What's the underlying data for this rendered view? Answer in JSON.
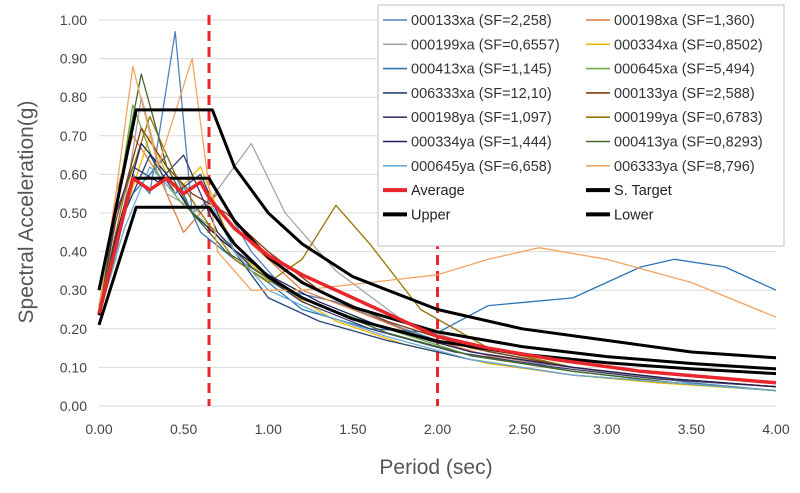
{
  "chart_data": {
    "type": "line",
    "title": "",
    "xlabel": "Period (sec)",
    "ylabel": "Spectral Acceleration(g)",
    "xlim": [
      0,
      4
    ],
    "ylim": [
      0,
      1
    ],
    "x_ticks": [
      "0.00",
      "0.50",
      "1.00",
      "1.50",
      "2.00",
      "2.50",
      "3.00",
      "3.50",
      "4.00"
    ],
    "y_ticks": [
      "0.00",
      "0.10",
      "0.20",
      "0.30",
      "0.40",
      "0.50",
      "0.60",
      "0.70",
      "0.80",
      "0.90",
      "1.00"
    ],
    "grid": "horizontal",
    "legend_position": "top-right",
    "reference_lines": [
      {
        "x": 0.65,
        "style": "dashed",
        "color": "#e8262b"
      },
      {
        "x": 2.0,
        "style": "dashed",
        "color": "#e8262b"
      }
    ],
    "record_series": [
      {
        "name": "000133xa (SF=2,258)",
        "color": "#4f81bd",
        "points": [
          [
            0,
            0.26
          ],
          [
            0.1,
            0.42
          ],
          [
            0.2,
            0.6
          ],
          [
            0.3,
            0.55
          ],
          [
            0.45,
            0.97
          ],
          [
            0.55,
            0.5
          ],
          [
            0.7,
            0.55
          ],
          [
            0.9,
            0.4
          ],
          [
            1.1,
            0.3
          ],
          [
            1.4,
            0.27
          ],
          [
            1.8,
            0.2
          ],
          [
            2.2,
            0.14
          ],
          [
            2.6,
            0.11
          ],
          [
            3,
            0.09
          ],
          [
            3.5,
            0.06
          ],
          [
            4,
            0.04
          ]
        ]
      },
      {
        "name": "000198xa (SF=1,360)",
        "color": "#e07b39",
        "points": [
          [
            0,
            0.25
          ],
          [
            0.1,
            0.55
          ],
          [
            0.2,
            0.7
          ],
          [
            0.35,
            0.6
          ],
          [
            0.5,
            0.45
          ],
          [
            0.7,
            0.55
          ],
          [
            0.9,
            0.42
          ],
          [
            1.2,
            0.3
          ],
          [
            1.5,
            0.25
          ],
          [
            1.9,
            0.18
          ],
          [
            2.3,
            0.13
          ],
          [
            2.8,
            0.1
          ],
          [
            3.3,
            0.07
          ],
          [
            4,
            0.05
          ]
        ]
      },
      {
        "name": "000199xa (SF=0,6557)",
        "color": "#a5a5a5",
        "points": [
          [
            0,
            0.24
          ],
          [
            0.1,
            0.38
          ],
          [
            0.25,
            0.8
          ],
          [
            0.4,
            0.55
          ],
          [
            0.6,
            0.5
          ],
          [
            0.9,
            0.68
          ],
          [
            1.1,
            0.5
          ],
          [
            1.4,
            0.35
          ],
          [
            1.8,
            0.22
          ],
          [
            2.3,
            0.14
          ],
          [
            2.8,
            0.1
          ],
          [
            3.3,
            0.07
          ],
          [
            4,
            0.05
          ]
        ]
      },
      {
        "name": "000334xa (SF=0,8502)",
        "color": "#f2b600",
        "points": [
          [
            0,
            0.24
          ],
          [
            0.15,
            0.5
          ],
          [
            0.3,
            0.7
          ],
          [
            0.45,
            0.55
          ],
          [
            0.6,
            0.62
          ],
          [
            0.8,
            0.4
          ],
          [
            1.1,
            0.3
          ],
          [
            1.4,
            0.22
          ],
          [
            1.8,
            0.16
          ],
          [
            2.3,
            0.11
          ],
          [
            2.8,
            0.08
          ],
          [
            3.3,
            0.06
          ],
          [
            4,
            0.04
          ]
        ]
      },
      {
        "name": "000413xa (SF=1,145)",
        "color": "#2e75b6",
        "points": [
          [
            0,
            0.25
          ],
          [
            0.1,
            0.45
          ],
          [
            0.2,
            0.55
          ],
          [
            0.4,
            0.65
          ],
          [
            0.6,
            0.45
          ],
          [
            0.8,
            0.38
          ],
          [
            1,
            0.32
          ],
          [
            1.2,
            0.25
          ],
          [
            1.6,
            0.2
          ],
          [
            2,
            0.19
          ],
          [
            2.3,
            0.26
          ],
          [
            2.8,
            0.28
          ],
          [
            3.2,
            0.36
          ],
          [
            3.4,
            0.38
          ],
          [
            3.7,
            0.36
          ],
          [
            4,
            0.3
          ]
        ]
      },
      {
        "name": "000645xa (SF=5,494)",
        "color": "#70ad47",
        "points": [
          [
            0,
            0.26
          ],
          [
            0.1,
            0.5
          ],
          [
            0.2,
            0.78
          ],
          [
            0.35,
            0.6
          ],
          [
            0.5,
            0.52
          ],
          [
            0.7,
            0.45
          ],
          [
            0.9,
            0.35
          ],
          [
            1.1,
            0.3
          ],
          [
            1.3,
            0.26
          ],
          [
            1.7,
            0.2
          ],
          [
            2.2,
            0.13
          ],
          [
            2.8,
            0.09
          ],
          [
            3.4,
            0.06
          ],
          [
            4,
            0.04
          ]
        ]
      },
      {
        "name": "006333xa (SF=12,10)",
        "color": "#264478",
        "points": [
          [
            0,
            0.24
          ],
          [
            0.15,
            0.5
          ],
          [
            0.3,
            0.65
          ],
          [
            0.45,
            0.55
          ],
          [
            0.6,
            0.6
          ],
          [
            0.8,
            0.4
          ],
          [
            1,
            0.28
          ],
          [
            1.3,
            0.22
          ],
          [
            1.7,
            0.17
          ],
          [
            2.2,
            0.12
          ],
          [
            2.8,
            0.08
          ],
          [
            3.4,
            0.06
          ],
          [
            4,
            0.04
          ]
        ]
      },
      {
        "name": "000133ya (SF=2,588)",
        "color": "#843c0c",
        "points": [
          [
            0,
            0.25
          ],
          [
            0.1,
            0.48
          ],
          [
            0.25,
            0.72
          ],
          [
            0.4,
            0.62
          ],
          [
            0.55,
            0.55
          ],
          [
            0.75,
            0.5
          ],
          [
            1,
            0.4
          ],
          [
            1.3,
            0.3
          ],
          [
            1.7,
            0.22
          ],
          [
            2.2,
            0.15
          ],
          [
            2.8,
            0.1
          ],
          [
            3.4,
            0.07
          ],
          [
            4,
            0.05
          ]
        ]
      },
      {
        "name": "000198ya (SF=1,097)",
        "color": "#3a3a6e",
        "points": [
          [
            0,
            0.24
          ],
          [
            0.1,
            0.5
          ],
          [
            0.2,
            0.62
          ],
          [
            0.35,
            0.58
          ],
          [
            0.5,
            0.65
          ],
          [
            0.7,
            0.45
          ],
          [
            0.9,
            0.36
          ],
          [
            1.2,
            0.27
          ],
          [
            1.6,
            0.2
          ],
          [
            2.1,
            0.14
          ],
          [
            2.7,
            0.1
          ],
          [
            3.3,
            0.07
          ],
          [
            4,
            0.05
          ]
        ]
      },
      {
        "name": "000199ya (SF=0,6783)",
        "color": "#997300",
        "points": [
          [
            0,
            0.25
          ],
          [
            0.15,
            0.55
          ],
          [
            0.3,
            0.75
          ],
          [
            0.45,
            0.6
          ],
          [
            0.6,
            0.5
          ],
          [
            0.8,
            0.38
          ],
          [
            1,
            0.32
          ],
          [
            1.2,
            0.38
          ],
          [
            1.4,
            0.52
          ],
          [
            1.6,
            0.42
          ],
          [
            1.9,
            0.25
          ],
          [
            2.3,
            0.15
          ],
          [
            2.8,
            0.1
          ],
          [
            3.4,
            0.07
          ],
          [
            4,
            0.05
          ]
        ]
      },
      {
        "name": "000334ya (SF=1,444)",
        "color": "#1f1f5e",
        "points": [
          [
            0,
            0.24
          ],
          [
            0.1,
            0.44
          ],
          [
            0.25,
            0.68
          ],
          [
            0.4,
            0.6
          ],
          [
            0.55,
            0.5
          ],
          [
            0.75,
            0.42
          ],
          [
            1,
            0.34
          ],
          [
            1.3,
            0.27
          ],
          [
            1.7,
            0.2
          ],
          [
            2.2,
            0.14
          ],
          [
            2.8,
            0.1
          ],
          [
            3.4,
            0.07
          ],
          [
            4,
            0.05
          ]
        ]
      },
      {
        "name": "000413ya (SF=0,8293)",
        "color": "#43682b",
        "points": [
          [
            0,
            0.25
          ],
          [
            0.1,
            0.52
          ],
          [
            0.25,
            0.86
          ],
          [
            0.4,
            0.62
          ],
          [
            0.55,
            0.5
          ],
          [
            0.75,
            0.4
          ],
          [
            1,
            0.33
          ],
          [
            1.3,
            0.26
          ],
          [
            1.7,
            0.19
          ],
          [
            2.2,
            0.13
          ],
          [
            2.8,
            0.09
          ],
          [
            3.4,
            0.06
          ],
          [
            4,
            0.04
          ]
        ]
      },
      {
        "name": "000645ya (SF=6,658)",
        "color": "#6aaed6",
        "points": [
          [
            0,
            0.24
          ],
          [
            0.15,
            0.46
          ],
          [
            0.3,
            0.62
          ],
          [
            0.45,
            0.55
          ],
          [
            0.6,
            0.58
          ],
          [
            0.8,
            0.4
          ],
          [
            1,
            0.3
          ],
          [
            1.3,
            0.24
          ],
          [
            1.7,
            0.18
          ],
          [
            2.2,
            0.12
          ],
          [
            2.8,
            0.08
          ],
          [
            3.4,
            0.06
          ],
          [
            4,
            0.04
          ]
        ]
      },
      {
        "name": "006333ya (SF=8,796)",
        "color": "#f4a460",
        "points": [
          [
            0,
            0.25
          ],
          [
            0.1,
            0.55
          ],
          [
            0.2,
            0.88
          ],
          [
            0.35,
            0.62
          ],
          [
            0.55,
            0.9
          ],
          [
            0.7,
            0.4
          ],
          [
            0.9,
            0.3
          ],
          [
            1.2,
            0.3
          ],
          [
            1.6,
            0.32
          ],
          [
            2,
            0.34
          ],
          [
            2.3,
            0.38
          ],
          [
            2.6,
            0.41
          ],
          [
            3,
            0.38
          ],
          [
            3.5,
            0.32
          ],
          [
            4,
            0.23
          ]
        ]
      }
    ],
    "envelope_series": [
      {
        "name": "Average",
        "color": "#e8262b",
        "width": 3.5,
        "points": [
          [
            0,
            0.24
          ],
          [
            0.2,
            0.59
          ],
          [
            0.3,
            0.56
          ],
          [
            0.4,
            0.59
          ],
          [
            0.5,
            0.55
          ],
          [
            0.6,
            0.58
          ],
          [
            0.65,
            0.54
          ],
          [
            0.8,
            0.46
          ],
          [
            1,
            0.39
          ],
          [
            1.2,
            0.34
          ],
          [
            1.5,
            0.28
          ],
          [
            1.8,
            0.22
          ],
          [
            2,
            0.18
          ],
          [
            2.3,
            0.15
          ],
          [
            2.7,
            0.12
          ],
          [
            3.2,
            0.09
          ],
          [
            3.6,
            0.075
          ],
          [
            4,
            0.06
          ]
        ]
      },
      {
        "name": "S. Target",
        "color": "#000000",
        "width": 3,
        "points": [
          [
            0,
            0.235
          ],
          [
            0.2,
            0.59
          ],
          [
            0.65,
            0.59
          ],
          [
            0.8,
            0.48
          ],
          [
            1,
            0.385
          ],
          [
            1.2,
            0.32
          ],
          [
            1.5,
            0.256
          ],
          [
            2,
            0.192
          ],
          [
            2.5,
            0.154
          ],
          [
            3,
            0.128
          ],
          [
            3.5,
            0.11
          ],
          [
            4,
            0.096
          ]
        ]
      },
      {
        "name": "Upper",
        "color": "#000000",
        "width": 3,
        "points": [
          [
            0,
            0.3
          ],
          [
            0.22,
            0.767
          ],
          [
            0.67,
            0.767
          ],
          [
            0.8,
            0.62
          ],
          [
            1,
            0.5
          ],
          [
            1.2,
            0.42
          ],
          [
            1.5,
            0.335
          ],
          [
            2,
            0.25
          ],
          [
            2.5,
            0.2
          ],
          [
            3,
            0.17
          ],
          [
            3.5,
            0.14
          ],
          [
            4,
            0.125
          ]
        ]
      },
      {
        "name": "Lower",
        "color": "#000000",
        "width": 3,
        "points": [
          [
            0,
            0.21
          ],
          [
            0.22,
            0.515
          ],
          [
            0.65,
            0.515
          ],
          [
            0.8,
            0.42
          ],
          [
            1,
            0.335
          ],
          [
            1.2,
            0.28
          ],
          [
            1.5,
            0.225
          ],
          [
            2,
            0.168
          ],
          [
            2.5,
            0.134
          ],
          [
            3,
            0.112
          ],
          [
            3.5,
            0.096
          ],
          [
            4,
            0.084
          ]
        ]
      }
    ]
  }
}
